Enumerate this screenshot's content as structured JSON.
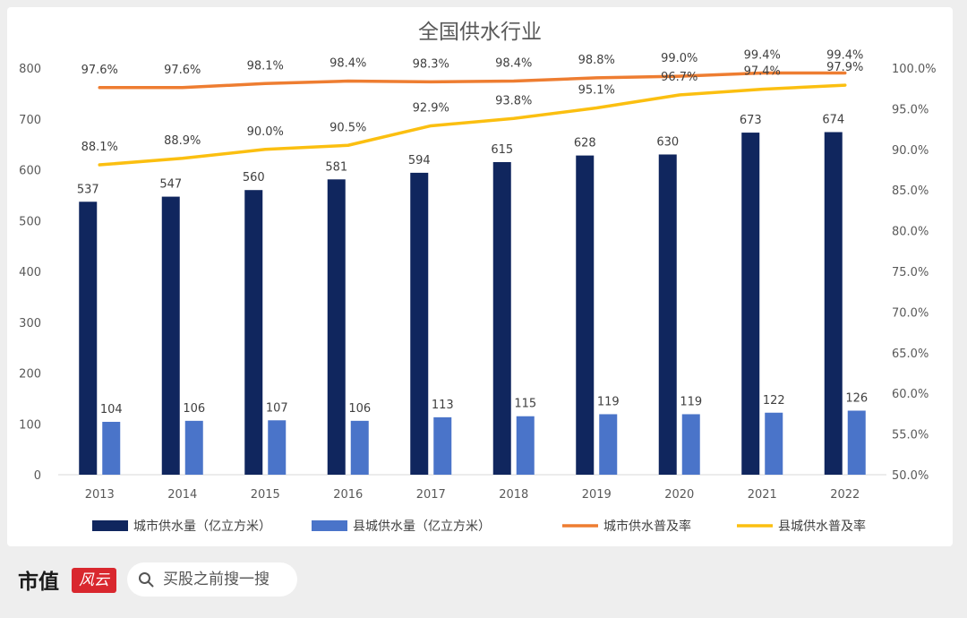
{
  "chart_data": {
    "type": "bar",
    "title": "全国供水行业",
    "categories": [
      "2013",
      "2014",
      "2015",
      "2016",
      "2017",
      "2018",
      "2019",
      "2020",
      "2021",
      "2022"
    ],
    "series": [
      {
        "name": "城市供水量（亿立方米）",
        "type": "bar",
        "axis": "left",
        "color": "#10265e",
        "values": [
          537,
          547,
          560,
          581,
          594,
          615,
          628,
          630,
          673,
          674
        ]
      },
      {
        "name": "县城供水量（亿立方米）",
        "type": "bar",
        "axis": "left",
        "color": "#4a74c9",
        "values": [
          104,
          106,
          107,
          106,
          113,
          115,
          119,
          119,
          122,
          126
        ]
      },
      {
        "name": "城市供水普及率",
        "type": "line",
        "axis": "right",
        "color": "#ee7d31",
        "values": [
          97.6,
          97.6,
          98.1,
          98.4,
          98.3,
          98.4,
          98.8,
          99.0,
          99.4,
          99.4
        ],
        "labels": [
          "97.6%",
          "97.6%",
          "98.1%",
          "98.4%",
          "98.3%",
          "98.4%",
          "98.8%",
          "99.0%",
          "99.4%",
          "99.4%"
        ]
      },
      {
        "name": "县城供水普及率",
        "type": "line",
        "axis": "right",
        "color": "#fbbf10",
        "values": [
          88.1,
          88.9,
          90.0,
          90.5,
          92.9,
          93.8,
          95.1,
          96.7,
          97.4,
          97.9
        ],
        "labels": [
          "88.1%",
          "88.9%",
          "90.0%",
          "90.5%",
          "92.9%",
          "93.8%",
          "95.1%",
          "96.7%",
          "97.4%",
          "97.9%"
        ]
      }
    ],
    "y_left": {
      "min": 0,
      "max": 800,
      "ticks": [
        "0",
        "100",
        "200",
        "300",
        "400",
        "500",
        "600",
        "700",
        "800"
      ]
    },
    "y_right": {
      "min": 50,
      "max": 100,
      "ticks": [
        "50.0%",
        "55.0%",
        "60.0%",
        "65.0%",
        "70.0%",
        "75.0%",
        "80.0%",
        "85.0%",
        "90.0%",
        "95.0%",
        "100.0%"
      ]
    },
    "grid": false,
    "legend_position": "bottom"
  },
  "footer": {
    "brand": "市值",
    "brand_mark": "风云",
    "search_text": "买股之前搜一搜"
  }
}
